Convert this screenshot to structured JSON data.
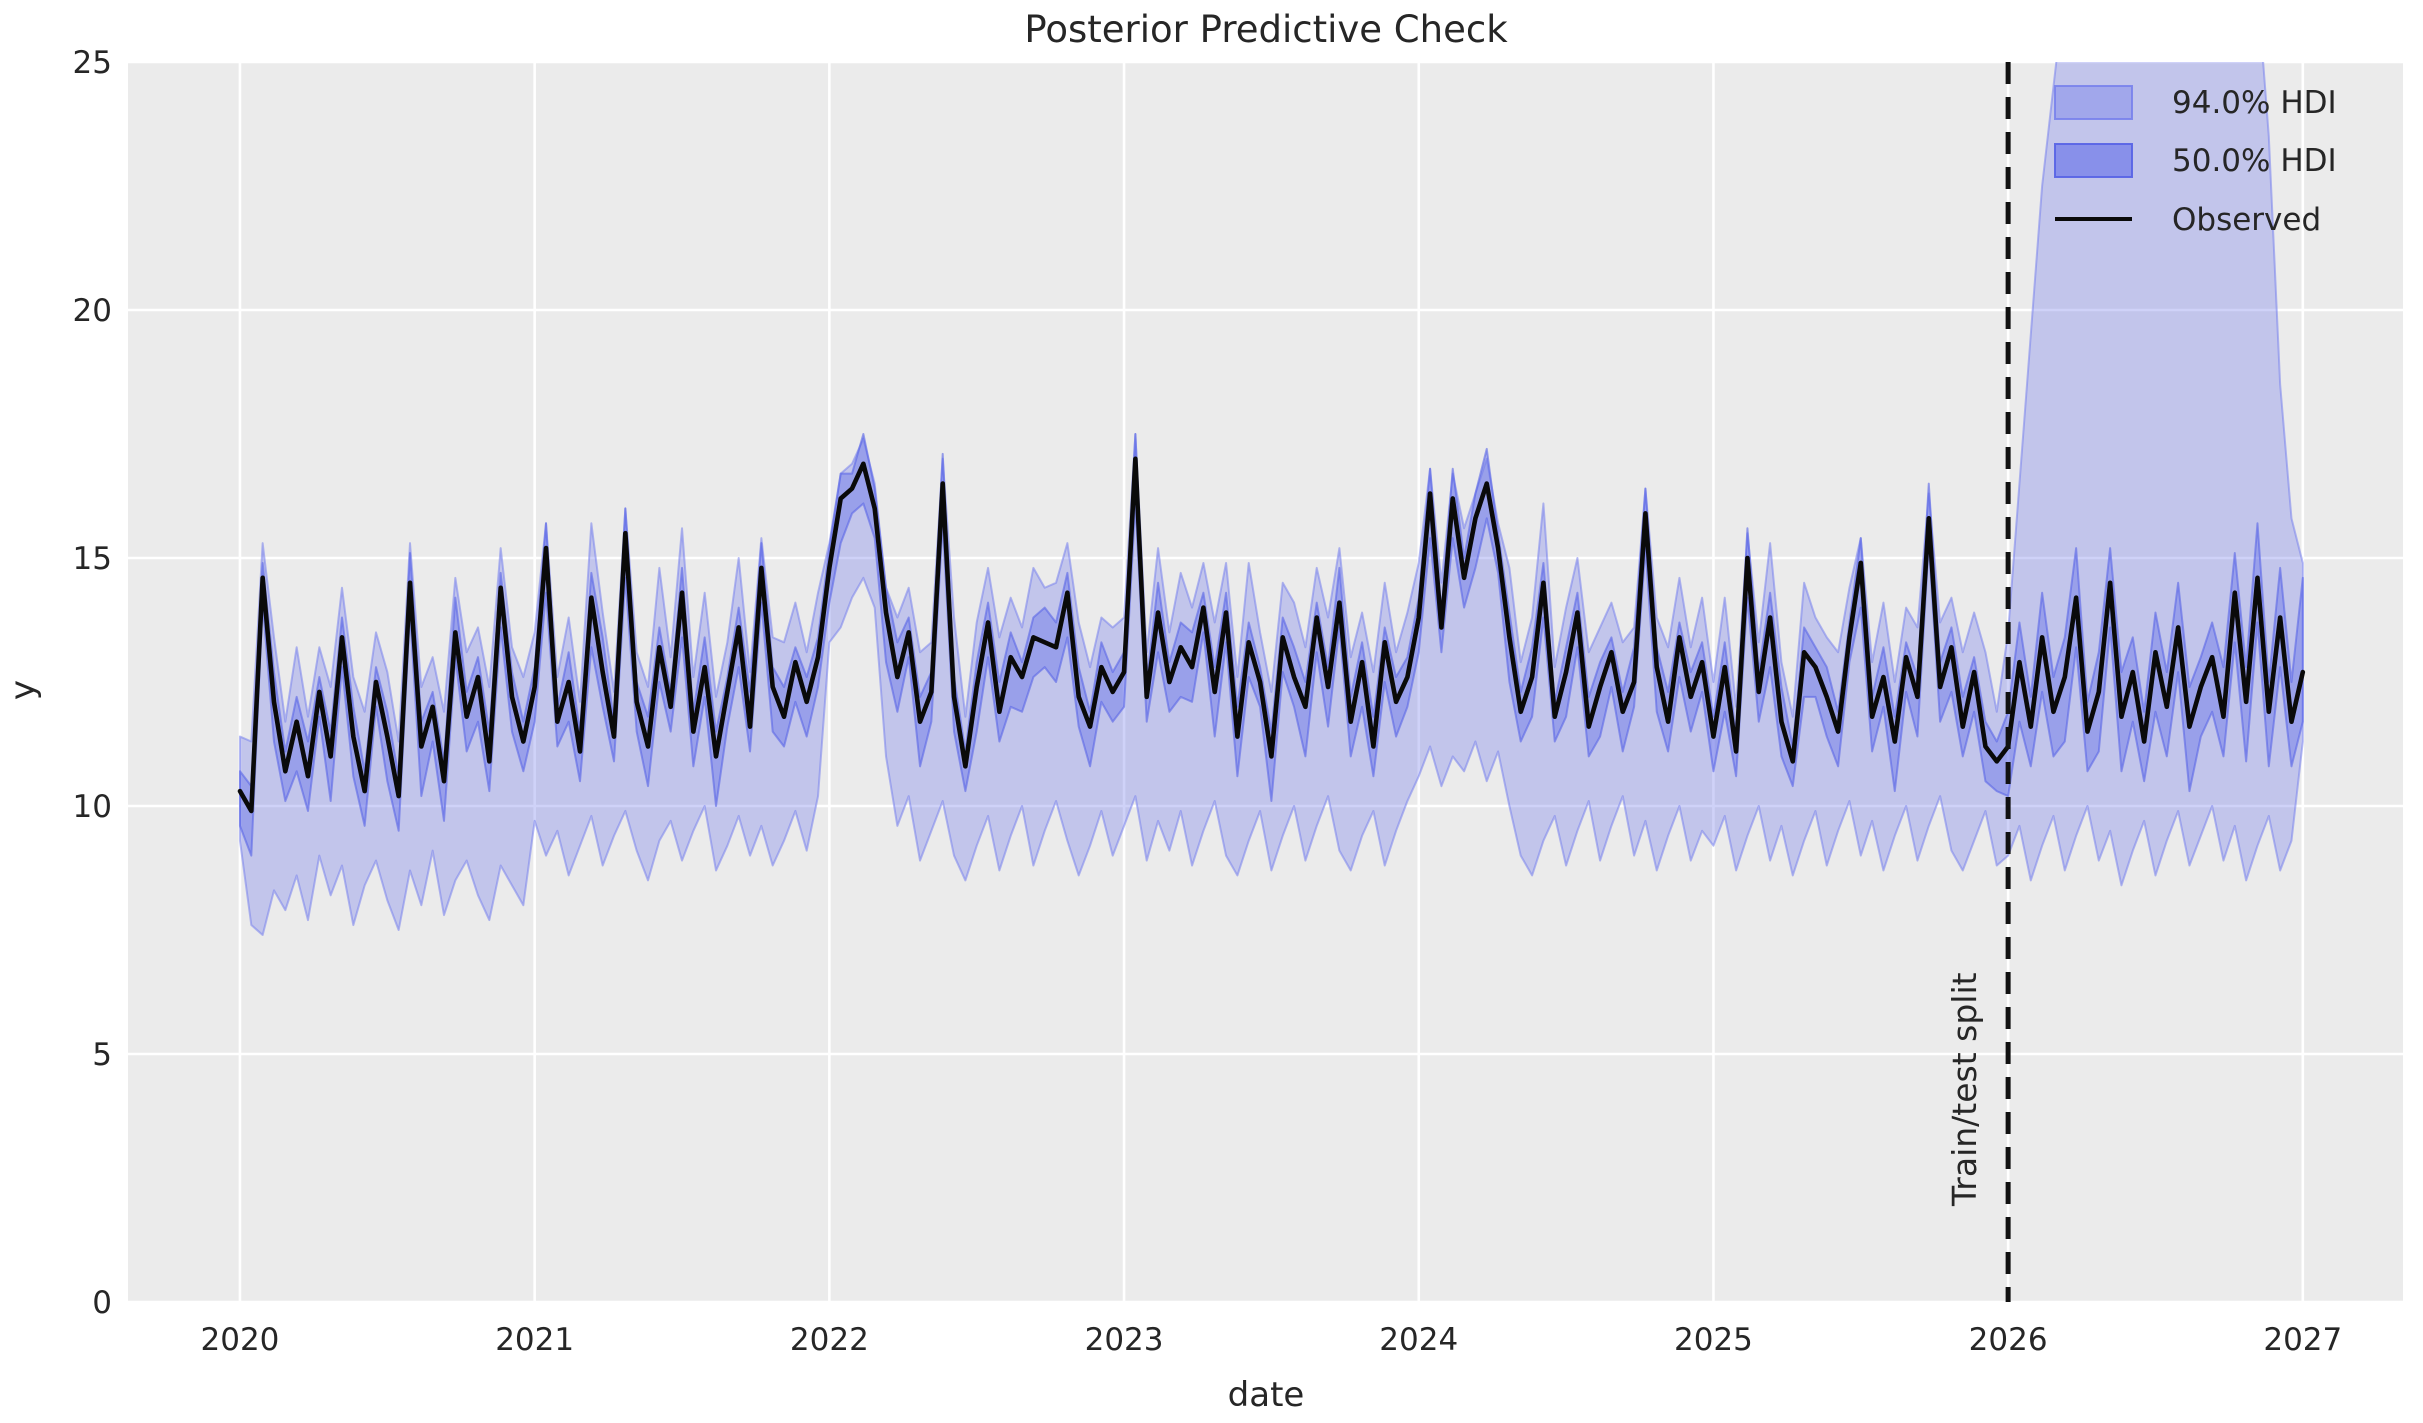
{
  "figure": {
    "background_color": "#ffffff",
    "plot_background_color": "#ebebeb",
    "grid_color": "#ffffff",
    "text_color": "#262626"
  },
  "chart_data": {
    "type": "line",
    "title": "Posterior Predictive Check",
    "xlabel": "date",
    "ylabel": "y",
    "grid": true,
    "xlim": [
      2019.62,
      2027.34
    ],
    "ylim": [
      0,
      25
    ],
    "x_ticks": [
      2020,
      2021,
      2022,
      2023,
      2024,
      2025,
      2026,
      2027
    ],
    "x_tick_labels": [
      "2020",
      "2021",
      "2022",
      "2023",
      "2024",
      "2025",
      "2026",
      "2027"
    ],
    "y_ticks": [
      0,
      5,
      10,
      15,
      20,
      25
    ],
    "y_tick_labels": [
      "0",
      "5",
      "10",
      "15",
      "20",
      "25"
    ],
    "split_line": {
      "x": 2026,
      "label": "Train/test split",
      "style": "dashed",
      "color": "#111111"
    },
    "legend": {
      "position": "upper right",
      "entries": [
        {
          "label": "94.0% HDI",
          "type": "band",
          "fill": "rgba(121,130,236,0.45)",
          "stroke": "rgba(121,130,236,0.9)"
        },
        {
          "label": "50.0% HDI",
          "type": "band",
          "fill": "rgba(105,115,233,0.65)",
          "stroke": "rgba(90,101,230,0.95)"
        },
        {
          "label": "Observed",
          "type": "line",
          "color": "#0a0a0a"
        }
      ]
    },
    "x_start": 2020,
    "x_end": 2027,
    "points_per_year": 26,
    "series": [
      {
        "name": "Observed",
        "type": "line",
        "color": "#0a0a0a",
        "values": [
          10.3,
          9.9,
          14.6,
          12.1,
          10.7,
          11.7,
          10.6,
          12.3,
          11.0,
          13.4,
          11.4,
          10.3,
          12.5,
          11.4,
          10.2,
          14.5,
          11.2,
          12.0,
          10.5,
          13.5,
          11.8,
          12.6,
          10.9,
          14.4,
          12.2,
          11.3,
          12.4,
          15.2,
          11.7,
          12.5,
          11.1,
          14.2,
          12.7,
          11.4,
          15.5,
          12.1,
          11.2,
          13.2,
          12.0,
          14.3,
          11.5,
          12.8,
          11.0,
          12.3,
          13.6,
          11.6,
          14.8,
          12.4,
          11.8,
          12.9,
          12.1,
          13.0,
          14.8,
          16.2,
          16.4,
          16.9,
          16.0,
          13.9,
          12.6,
          13.5,
          11.7,
          12.3,
          16.5,
          12.2,
          10.8,
          12.4,
          13.7,
          11.9,
          13.0,
          12.6,
          13.4,
          13.3,
          13.2,
          14.3,
          12.2,
          11.6,
          12.8,
          12.3,
          12.7,
          17.0,
          12.2,
          13.9,
          12.5,
          13.2,
          12.8,
          14.0,
          12.3,
          13.9,
          11.4,
          13.3,
          12.5,
          11.0,
          13.4,
          12.6,
          12.0,
          13.8,
          12.4,
          14.1,
          11.7,
          12.9,
          11.2,
          13.3,
          12.1,
          12.6,
          13.8,
          16.3,
          13.6,
          16.2,
          14.6,
          15.8,
          16.5,
          15.2,
          13.4,
          11.9,
          12.6,
          14.5,
          11.8,
          12.7,
          13.9,
          11.6,
          12.4,
          13.1,
          11.9,
          12.5,
          15.9,
          12.8,
          11.7,
          13.4,
          12.2,
          12.9,
          11.4,
          12.8,
          11.1,
          15.0,
          12.3,
          13.8,
          11.7,
          10.9,
          13.1,
          12.8,
          12.2,
          11.5,
          13.4,
          14.9,
          11.8,
          12.6,
          11.3,
          13.0,
          12.2,
          15.8,
          12.4,
          13.2,
          11.6,
          12.7,
          11.2,
          10.9,
          11.2,
          12.9,
          11.6,
          13.4,
          11.9,
          12.6,
          14.2,
          11.5,
          12.3,
          14.5,
          11.8,
          12.7,
          11.3,
          13.1,
          12.0,
          13.6,
          11.6,
          12.4,
          13.0,
          11.8,
          14.3,
          12.1,
          14.6,
          11.9,
          13.8,
          11.7,
          12.7
        ]
      },
      {
        "name": "94.0% HDI",
        "type": "band",
        "fill": "rgba(121,130,236,0.36)",
        "stroke": "rgba(121,130,236,0.55)",
        "upper": [
          11.4,
          11.3,
          15.3,
          13.4,
          11.7,
          13.2,
          11.8,
          13.2,
          12.4,
          14.4,
          12.6,
          11.9,
          13.5,
          12.7,
          11.3,
          15.3,
          12.4,
          13.0,
          11.9,
          14.6,
          13.1,
          13.6,
          12.4,
          15.2,
          13.2,
          12.6,
          13.5,
          15.7,
          12.6,
          13.8,
          12.1,
          15.7,
          13.9,
          12.3,
          16.0,
          13.1,
          12.4,
          14.8,
          13.0,
          15.6,
          12.6,
          14.3,
          12.2,
          13.3,
          15.0,
          12.7,
          15.4,
          13.4,
          13.3,
          14.1,
          13.1,
          14.3,
          15.3,
          16.7,
          16.9,
          17.4,
          16.5,
          14.4,
          13.8,
          14.4,
          13.1,
          13.3,
          17.0,
          13.8,
          11.8,
          13.7,
          14.8,
          13.4,
          14.2,
          13.6,
          14.8,
          14.4,
          14.5,
          15.3,
          13.7,
          12.8,
          13.8,
          13.6,
          13.8,
          17.5,
          13.1,
          15.2,
          13.5,
          14.7,
          14.0,
          14.9,
          13.7,
          14.9,
          12.6,
          14.9,
          13.5,
          12.3,
          14.5,
          14.1,
          13.2,
          14.8,
          13.8,
          15.2,
          13.0,
          13.9,
          12.7,
          14.5,
          13.1,
          13.9,
          14.9,
          16.8,
          14.5,
          16.7,
          15.6,
          16.3,
          17.0,
          15.7,
          14.8,
          12.9,
          13.8,
          16.1,
          12.8,
          14.0,
          15.0,
          13.1,
          13.6,
          14.1,
          13.3,
          13.6,
          16.4,
          13.8,
          13.2,
          14.6,
          13.2,
          14.2,
          12.5,
          14.2,
          12.0,
          15.5,
          13.3,
          15.3,
          12.9,
          11.8,
          14.5,
          13.8,
          13.4,
          13.1,
          14.4,
          15.4,
          12.9,
          14.1,
          12.5,
          14.0,
          13.6,
          16.3,
          13.7,
          14.2,
          13.1,
          13.9,
          13.1,
          11.9,
          13.5,
          16.5,
          19.5,
          22.5,
          24.5,
          26.5,
          27.0,
          27.0,
          27.0,
          27.0,
          27.0,
          27.0,
          27.0,
          27.0,
          27.0,
          27.0,
          27.0,
          27.0,
          27.0,
          27.0,
          27.0,
          27.0,
          26.5,
          23.5,
          18.5,
          15.8,
          14.9
        ],
        "lower": [
          9.3,
          7.6,
          7.4,
          8.3,
          7.9,
          8.6,
          7.7,
          9.0,
          8.2,
          8.8,
          7.6,
          8.4,
          8.9,
          8.1,
          7.5,
          8.7,
          8.0,
          9.1,
          7.8,
          8.5,
          8.9,
          8.2,
          7.7,
          8.8,
          8.4,
          8.0,
          9.7,
          9.0,
          9.5,
          8.6,
          9.2,
          9.8,
          8.8,
          9.4,
          9.9,
          9.1,
          8.5,
          9.3,
          9.7,
          8.9,
          9.5,
          10.0,
          8.7,
          9.2,
          9.8,
          9.0,
          9.6,
          8.8,
          9.3,
          9.9,
          9.1,
          10.2,
          13.3,
          13.6,
          14.2,
          14.6,
          14.0,
          11.0,
          9.6,
          10.2,
          8.9,
          9.5,
          10.1,
          9.0,
          8.5,
          9.2,
          9.8,
          8.7,
          9.4,
          10.0,
          8.8,
          9.5,
          10.1,
          9.3,
          8.6,
          9.2,
          9.9,
          9.0,
          9.6,
          10.2,
          8.9,
          9.7,
          9.1,
          9.9,
          8.8,
          9.5,
          10.1,
          9.0,
          8.6,
          9.3,
          9.9,
          8.7,
          9.4,
          10.0,
          8.9,
          9.6,
          10.2,
          9.1,
          8.7,
          9.4,
          9.9,
          8.8,
          9.5,
          10.1,
          10.6,
          11.2,
          10.4,
          11.0,
          10.7,
          11.3,
          10.5,
          11.1,
          10.0,
          9.0,
          8.6,
          9.3,
          9.8,
          8.8,
          9.5,
          10.1,
          8.9,
          9.6,
          10.2,
          9.0,
          9.7,
          8.7,
          9.4,
          10.0,
          8.9,
          9.5,
          9.2,
          9.8,
          8.7,
          9.4,
          10.0,
          8.9,
          9.6,
          8.6,
          9.3,
          9.9,
          8.8,
          9.5,
          10.1,
          9.0,
          9.7,
          8.7,
          9.4,
          10.0,
          8.9,
          9.6,
          10.2,
          9.1,
          8.7,
          9.3,
          9.9,
          8.8,
          9.0,
          9.6,
          8.5,
          9.2,
          9.8,
          8.7,
          9.4,
          10.0,
          8.9,
          9.5,
          8.4,
          9.1,
          9.7,
          8.6,
          9.3,
          9.9,
          8.8,
          9.4,
          10.0,
          8.9,
          9.6,
          8.5,
          9.2,
          9.8,
          8.7,
          9.3,
          11.3
        ]
      },
      {
        "name": "50.0% HDI",
        "type": "band",
        "fill": "rgba(105,115,233,0.45)",
        "stroke": "rgba(90,101,230,0.6)",
        "upper": [
          10.7,
          10.4,
          14.9,
          12.7,
          11.1,
          12.2,
          11.3,
          12.6,
          11.5,
          13.8,
          12.0,
          10.7,
          12.8,
          11.9,
          10.6,
          15.1,
          11.7,
          12.3,
          10.9,
          14.2,
          12.3,
          13.0,
          11.5,
          14.7,
          12.7,
          11.7,
          12.8,
          15.7,
          12.0,
          13.1,
          11.5,
          14.7,
          13.4,
          11.7,
          16.0,
          12.5,
          11.8,
          13.6,
          12.3,
          14.8,
          11.9,
          13.4,
          11.5,
          12.6,
          14.0,
          12.3,
          15.3,
          12.8,
          12.4,
          13.2,
          12.6,
          13.4,
          15.2,
          16.7,
          16.7,
          17.5,
          16.4,
          14.4,
          13.3,
          13.8,
          12.2,
          12.7,
          17.1,
          12.6,
          11.1,
          12.9,
          14.1,
          12.5,
          13.5,
          12.9,
          13.8,
          14.0,
          13.7,
          14.7,
          12.8,
          11.9,
          13.3,
          12.7,
          13.1,
          17.5,
          12.5,
          14.5,
          12.9,
          13.7,
          13.5,
          14.3,
          12.8,
          14.3,
          12.0,
          13.7,
          12.8,
          11.5,
          13.8,
          13.2,
          12.5,
          14.1,
          12.8,
          14.8,
          12.2,
          13.3,
          11.8,
          13.6,
          12.6,
          13.0,
          14.2,
          16.8,
          13.9,
          16.8,
          15.0,
          16.3,
          17.2,
          15.5,
          13.9,
          12.3,
          13.2,
          14.9,
          12.1,
          13.2,
          14.3,
          12.2,
          12.9,
          13.4,
          12.3,
          13.2,
          16.4,
          13.2,
          12.3,
          13.7,
          12.7,
          13.3,
          11.8,
          13.3,
          11.4,
          15.6,
          12.7,
          14.3,
          12.4,
          11.2,
          13.6,
          13.2,
          12.8,
          11.9,
          13.7,
          15.4,
          12.2,
          13.2,
          11.8,
          13.3,
          12.6,
          16.5,
          12.9,
          13.6,
          12.2,
          13.0,
          11.7,
          11.3,
          11.9,
          13.7,
          12.2,
          14.3,
          12.6,
          13.4,
          15.2,
          12.1,
          13.1,
          15.2,
          12.7,
          13.4,
          11.9,
          13.9,
          12.7,
          14.5,
          12.4,
          13.0,
          13.7,
          12.8,
          15.1,
          12.8,
          15.7,
          12.5,
          14.8,
          12.5,
          14.6
        ],
        "lower": [
          9.6,
          9.0,
          14.1,
          11.3,
          10.1,
          10.7,
          9.9,
          11.8,
          10.1,
          12.8,
          10.6,
          9.6,
          12.0,
          10.5,
          9.5,
          13.9,
          10.2,
          11.3,
          9.7,
          13.0,
          11.1,
          11.7,
          10.3,
          13.6,
          11.5,
          10.7,
          11.7,
          14.3,
          11.2,
          11.7,
          10.5,
          13.2,
          12.0,
          10.9,
          14.6,
          11.5,
          10.4,
          12.5,
          11.5,
          13.4,
          10.8,
          12.2,
          10.0,
          11.6,
          12.8,
          11.1,
          14.1,
          11.5,
          11.2,
          12.1,
          11.4,
          12.4,
          14.1,
          15.3,
          15.9,
          16.1,
          15.4,
          12.9,
          11.9,
          13.0,
          10.8,
          11.7,
          15.7,
          11.5,
          10.3,
          11.5,
          13.0,
          11.3,
          12.0,
          11.9,
          12.6,
          12.8,
          12.5,
          13.4,
          11.6,
          10.8,
          12.1,
          11.7,
          12.0,
          16.1,
          11.7,
          13.1,
          11.9,
          12.2,
          12.1,
          13.5,
          11.4,
          13.3,
          10.6,
          12.6,
          12.0,
          10.1,
          12.7,
          12.0,
          11.0,
          13.1,
          11.6,
          13.6,
          11.0,
          12.0,
          10.6,
          12.5,
          11.4,
          12.0,
          13.1,
          15.4,
          13.1,
          15.4,
          14.0,
          14.8,
          15.8,
          14.7,
          12.5,
          11.3,
          11.8,
          13.8,
          11.3,
          11.8,
          13.2,
          11.0,
          11.4,
          12.4,
          11.1,
          12.0,
          15.2,
          11.9,
          11.1,
          12.6,
          11.5,
          12.3,
          10.7,
          11.9,
          10.6,
          14.2,
          11.7,
          12.8,
          11.0,
          10.4,
          12.2,
          12.2,
          11.4,
          10.8,
          12.9,
          14.0,
          11.1,
          12.0,
          10.3,
          12.3,
          11.4,
          15.3,
          11.7,
          12.3,
          11.0,
          11.9,
          10.5,
          10.3,
          10.2,
          11.7,
          10.8,
          12.3,
          11.0,
          11.3,
          13.2,
          10.7,
          11.1,
          13.6,
          10.7,
          11.7,
          10.5,
          11.9,
          11.0,
          12.7,
          10.3,
          11.4,
          11.9,
          11.0,
          13.3,
          10.9,
          13.7,
          10.8,
          12.8,
          10.8,
          11.7
        ]
      }
    ]
  }
}
